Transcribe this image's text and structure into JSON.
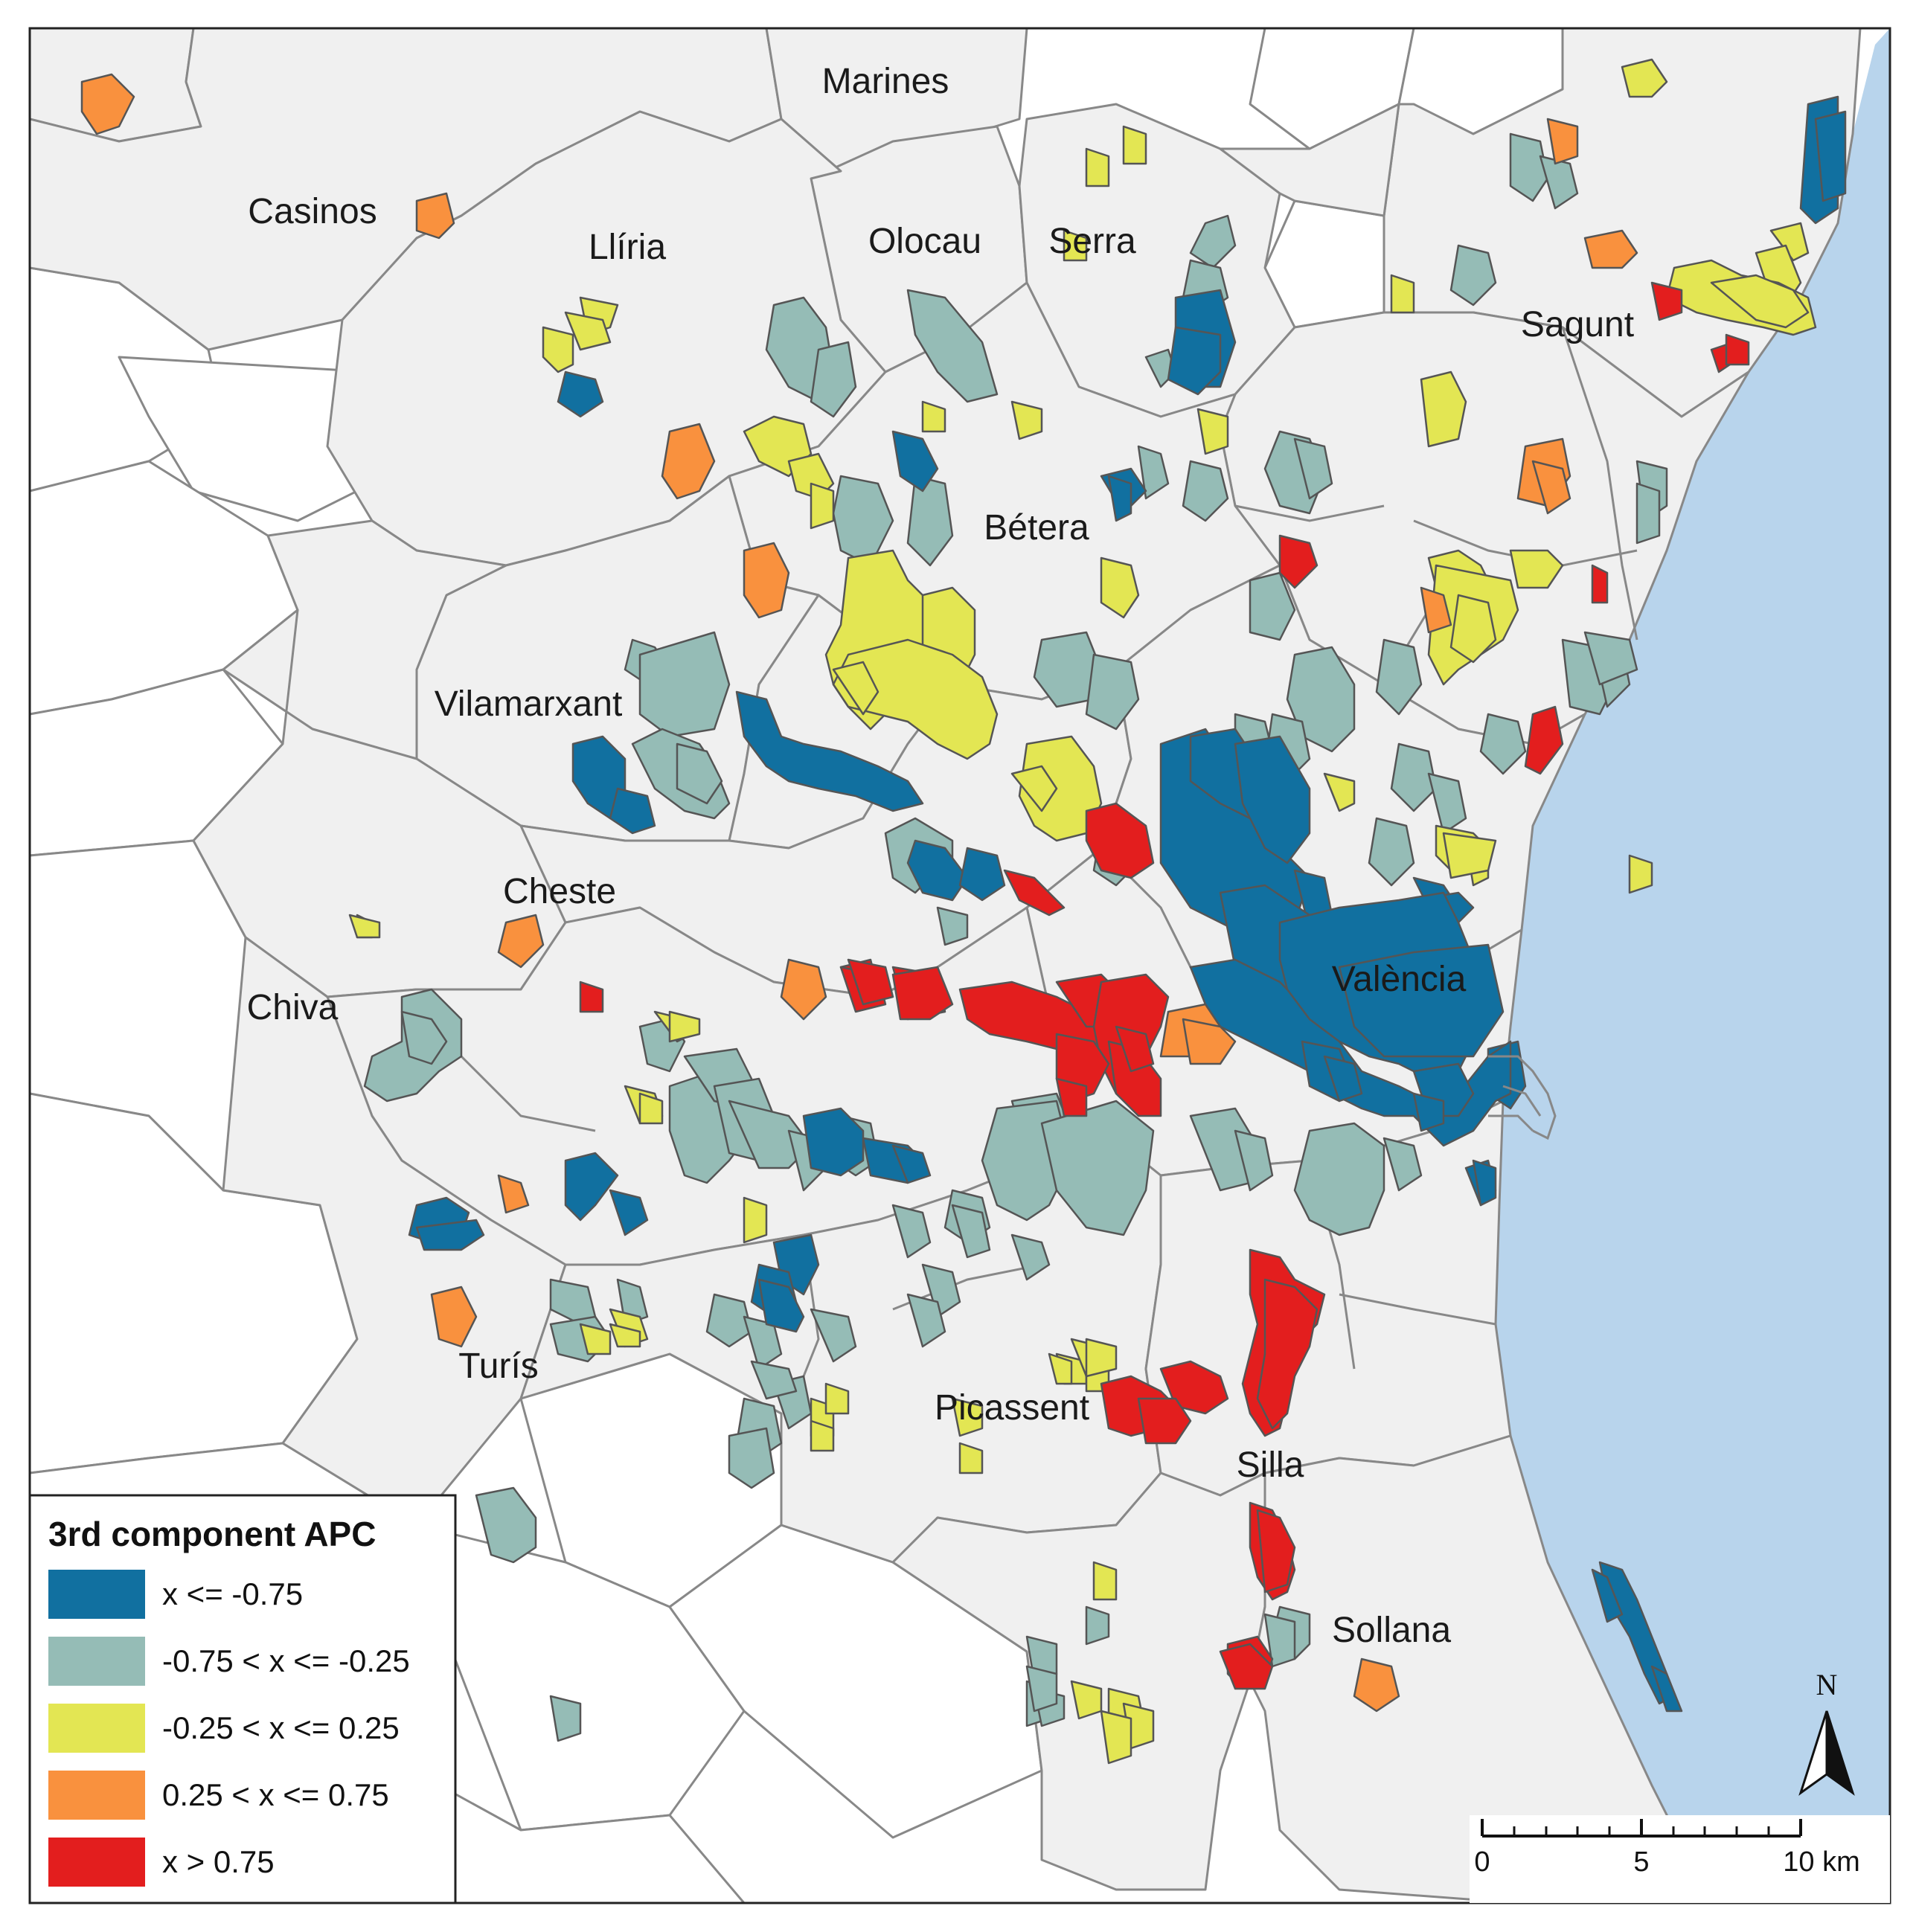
{
  "colors": {
    "sea": "#b8d4ec",
    "class_1": "#1170a0",
    "class_2": "#95bcb6",
    "class_3": "#e3e653",
    "class_4": "#f9913e",
    "class_5": "#e31e1e",
    "municipality_fill": "#f0f0f0",
    "border": "#888888"
  },
  "towns": [
    {
      "id": "marines",
      "name": "Marines"
    },
    {
      "id": "casinos",
      "name": "Casinos"
    },
    {
      "id": "lliria",
      "name": "Llíria"
    },
    {
      "id": "olocau",
      "name": "Olocau"
    },
    {
      "id": "serra",
      "name": "Serra"
    },
    {
      "id": "sagunt",
      "name": "Sagunt"
    },
    {
      "id": "betera",
      "name": "Bétera"
    },
    {
      "id": "vilamarxant",
      "name": "Vilamarxant"
    },
    {
      "id": "cheste",
      "name": "Cheste"
    },
    {
      "id": "chiva",
      "name": "Chiva"
    },
    {
      "id": "valencia",
      "name": "València"
    },
    {
      "id": "turis",
      "name": "Turís"
    },
    {
      "id": "picassent",
      "name": "Picassent"
    },
    {
      "id": "silla",
      "name": "Silla"
    },
    {
      "id": "sollana",
      "name": "Sollana"
    }
  ],
  "legend": {
    "title": "3rd component APC",
    "classes": [
      {
        "label": "x <= -0.75",
        "color": "#1170a0"
      },
      {
        "label": "-0.75 < x <= -0.25",
        "color": "#95bcb6"
      },
      {
        "label": "-0.25 < x <= 0.25",
        "color": "#e3e653"
      },
      {
        "label": "0.25 < x <= 0.75",
        "color": "#f9913e"
      },
      {
        "label": "x > 0.75",
        "color": "#e31e1e"
      }
    ]
  },
  "scale_bar": {
    "ticks": [
      "0",
      "5",
      "10 km"
    ]
  },
  "north_arrow": {
    "label": "N"
  }
}
